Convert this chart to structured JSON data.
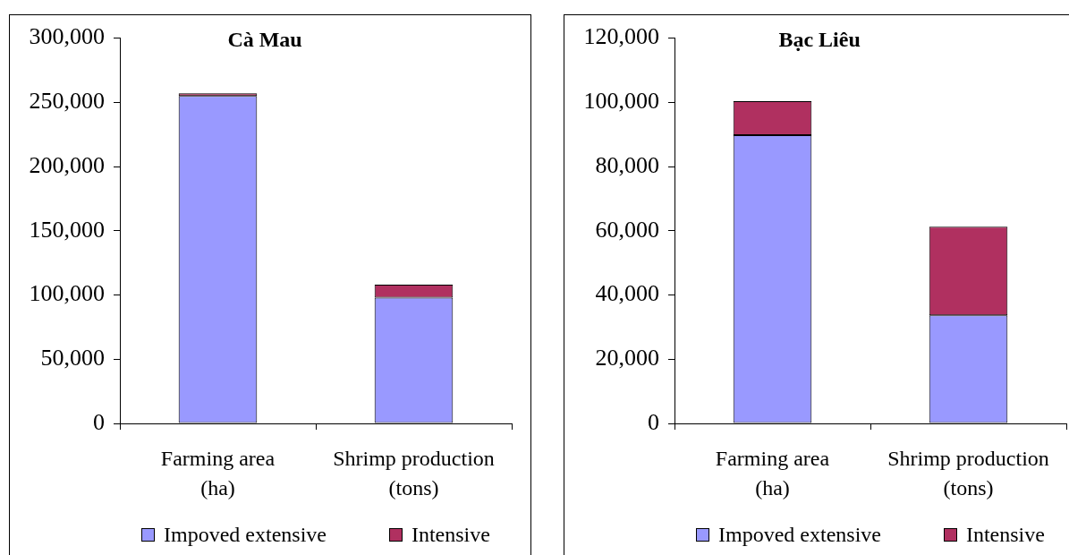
{
  "chart_data": [
    {
      "type": "bar",
      "title": "Cà Mau",
      "categories": [
        "Farming area (ha)",
        "Shrimp production (tons)"
      ],
      "series": [
        {
          "name": "Impoved extensive",
          "color": "#9999ff",
          "values": [
            255000,
            98000
          ]
        },
        {
          "name": "Intensive",
          "color": "#b03060",
          "values": [
            2000,
            10000
          ]
        }
      ],
      "stacked": true,
      "ylim": [
        0,
        300000
      ],
      "yticks": [
        0,
        {
          "value": 50000,
          "label": "50,000"
        },
        {
          "value": 100000,
          "label": "100,000"
        },
        {
          "value": 150000,
          "label": "150,000"
        },
        {
          "value": 200000,
          "label": "200,000"
        },
        {
          "value": 250000,
          "label": "250,000"
        },
        {
          "value": 300000,
          "label": "300,000"
        }
      ],
      "legend": "bottom"
    },
    {
      "type": "bar",
      "title": "Bạc Liêu",
      "categories": [
        "Farming area (ha)",
        "Shrimp production (tons)"
      ],
      "series": [
        {
          "name": "Impoved extensive",
          "color": "#9999ff",
          "values": [
            89800,
            33700
          ]
        },
        {
          "name": "Intensive",
          "color": "#b03060",
          "values": [
            10600,
            27600
          ]
        }
      ],
      "stacked": true,
      "ylim": [
        0,
        120000
      ],
      "yticks": [
        0,
        {
          "value": 20000,
          "label": "20,000"
        },
        {
          "value": 40000,
          "label": "40,000"
        },
        {
          "value": 60000,
          "label": "60,000"
        },
        {
          "value": 80000,
          "label": "80,000"
        },
        {
          "value": 100000,
          "label": "100,000"
        },
        {
          "value": 120000,
          "label": "120,000"
        }
      ],
      "legend": "bottom"
    }
  ]
}
